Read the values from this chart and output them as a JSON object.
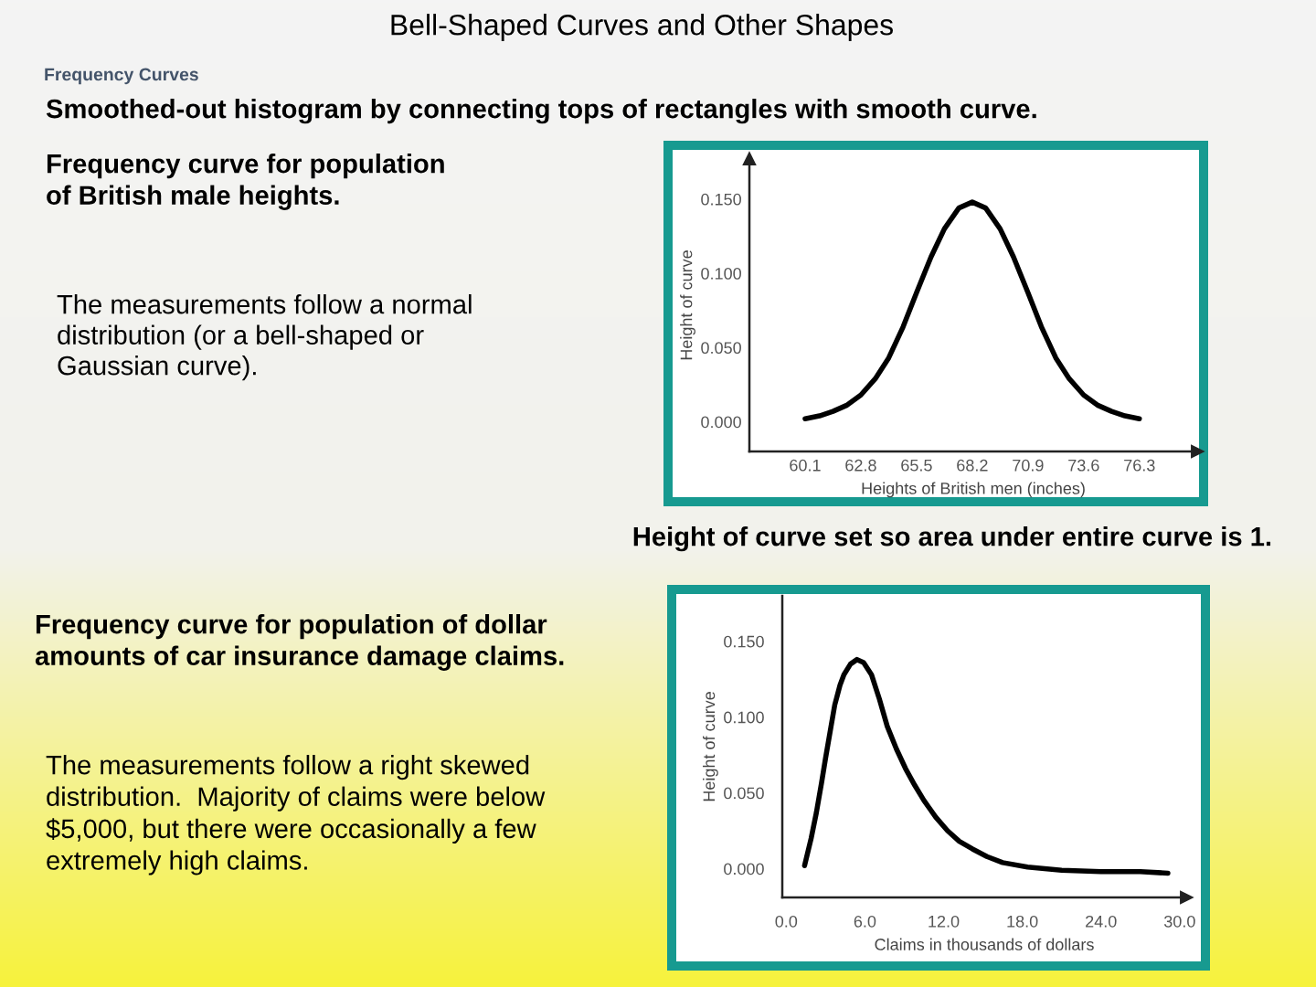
{
  "chart_data": [
    {
      "type": "line",
      "title": "Bell-Shaped Curves and Other Shapes",
      "annotations": [
        "Frequency Curves",
        "Smoothed-out histogram by connecting tops of rectangles with smooth curve.",
        "Frequency curve for population\nof British male heights.",
        "The measurements follow a normal\ndistribution (or a bell-shaped or\nGaussian curve).",
        "Height of curve set so area under entire curve is 1."
      ],
      "xlabel": "Heights of British men (inches)",
      "ylabel": "Height of curve",
      "color": "#000000",
      "x": [
        60.1,
        60.8,
        61.45,
        62.1,
        62.8,
        63.5,
        64.15,
        64.85,
        65.5,
        66.2,
        66.85,
        67.55,
        68.2,
        68.85,
        69.55,
        70.2,
        70.9,
        71.55,
        72.25,
        72.9,
        73.6,
        74.3,
        74.95,
        75.6,
        76.3
      ],
      "values": [
        0.002,
        0.004,
        0.007,
        0.011,
        0.018,
        0.029,
        0.043,
        0.064,
        0.087,
        0.111,
        0.13,
        0.144,
        0.148,
        0.144,
        0.13,
        0.111,
        0.087,
        0.064,
        0.043,
        0.029,
        0.018,
        0.011,
        0.007,
        0.004,
        0.002
      ],
      "xlim": [
        57.4,
        79.1
      ],
      "ylim": [
        -0.02,
        0.177
      ],
      "xticks": [
        60.1,
        62.8,
        65.5,
        68.2,
        70.9,
        73.6,
        76.3
      ],
      "yticks": [
        {
          "value": 0.0,
          "label": "0.000"
        },
        {
          "value": 0.05,
          "label": "0.050"
        },
        {
          "value": 0.1,
          "label": "0.100"
        },
        {
          "value": 0.15,
          "label": "0.150"
        }
      ]
    },
    {
      "type": "line",
      "annotations": [
        "Frequency curve for population of dollar\namounts of car insurance damage claims.",
        "The measurements follow a right skewed\ndistribution.  Majority of claims were below\n$5,000, but there were occasionally a few\nextremely high claims."
      ],
      "xlabel": "Claims in thousands of dollars",
      "ylabel": "Height of curve",
      "color": "#000000",
      "x": [
        1.4,
        1.9,
        2.3,
        2.7,
        3.0,
        3.4,
        3.7,
        4.1,
        4.4,
        4.9,
        5.4,
        5.9,
        6.5,
        7.1,
        7.7,
        8.4,
        9.1,
        9.8,
        10.5,
        11.4,
        12.3,
        13.2,
        14.2,
        15.3,
        16.5,
        18.4,
        21.0,
        24.0,
        27.0,
        29.1
      ],
      "values": [
        0.002,
        0.02,
        0.037,
        0.057,
        0.073,
        0.093,
        0.108,
        0.121,
        0.128,
        0.135,
        0.138,
        0.136,
        0.128,
        0.112,
        0.094,
        0.079,
        0.066,
        0.055,
        0.045,
        0.034,
        0.025,
        0.018,
        0.013,
        0.008,
        0.004,
        0.001,
        -0.001,
        -0.002,
        -0.002,
        -0.003
      ],
      "xlim": [
        -0.3,
        30.5
      ],
      "ylim": [
        -0.019,
        0.18
      ],
      "xticks": [
        {
          "value": 0,
          "label": "0.0"
        },
        {
          "value": 6,
          "label": "6.0"
        },
        {
          "value": 12,
          "label": "12.0"
        },
        {
          "value": 18,
          "label": "18.0"
        },
        {
          "value": 24,
          "label": "24.0"
        },
        {
          "value": 30,
          "label": "30.0"
        }
      ],
      "yticks": [
        {
          "value": 0.0,
          "label": "0.000"
        },
        {
          "value": 0.05,
          "label": "0.050"
        },
        {
          "value": 0.1,
          "label": "0.100"
        },
        {
          "value": 0.15,
          "label": "0.150"
        }
      ]
    }
  ]
}
